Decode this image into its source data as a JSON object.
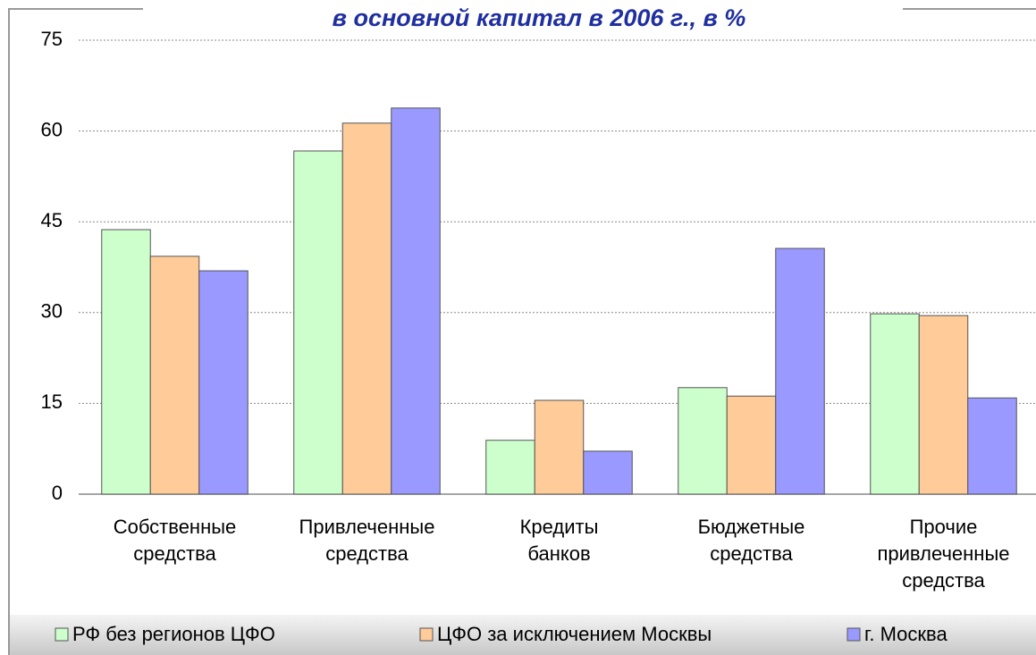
{
  "chart_data": {
    "type": "bar",
    "title": "в основной капитал в 2006 г., в %",
    "categories": [
      "Собственные средства",
      "Привлеченные средства",
      "Кредиты банков",
      "Бюджетные средства",
      "Прочие привлеченные средства"
    ],
    "series": [
      {
        "name": "РФ без регионов ЦФО",
        "color": "#ccffcc",
        "values": [
          43.7,
          56.7,
          8.9,
          17.6,
          29.8
        ]
      },
      {
        "name": "ЦФО за исключением Москвы",
        "color": "#ffcc99",
        "values": [
          39.3,
          61.3,
          15.5,
          16.2,
          29.5
        ]
      },
      {
        "name": "г. Москва",
        "color": "#9999ff",
        "values": [
          36.9,
          63.8,
          7.1,
          40.6,
          15.9
        ]
      }
    ],
    "ylim": [
      0,
      75
    ],
    "yticks": [
      0,
      15,
      30,
      45,
      60,
      75
    ],
    "grid": true,
    "legend": "bottom"
  }
}
